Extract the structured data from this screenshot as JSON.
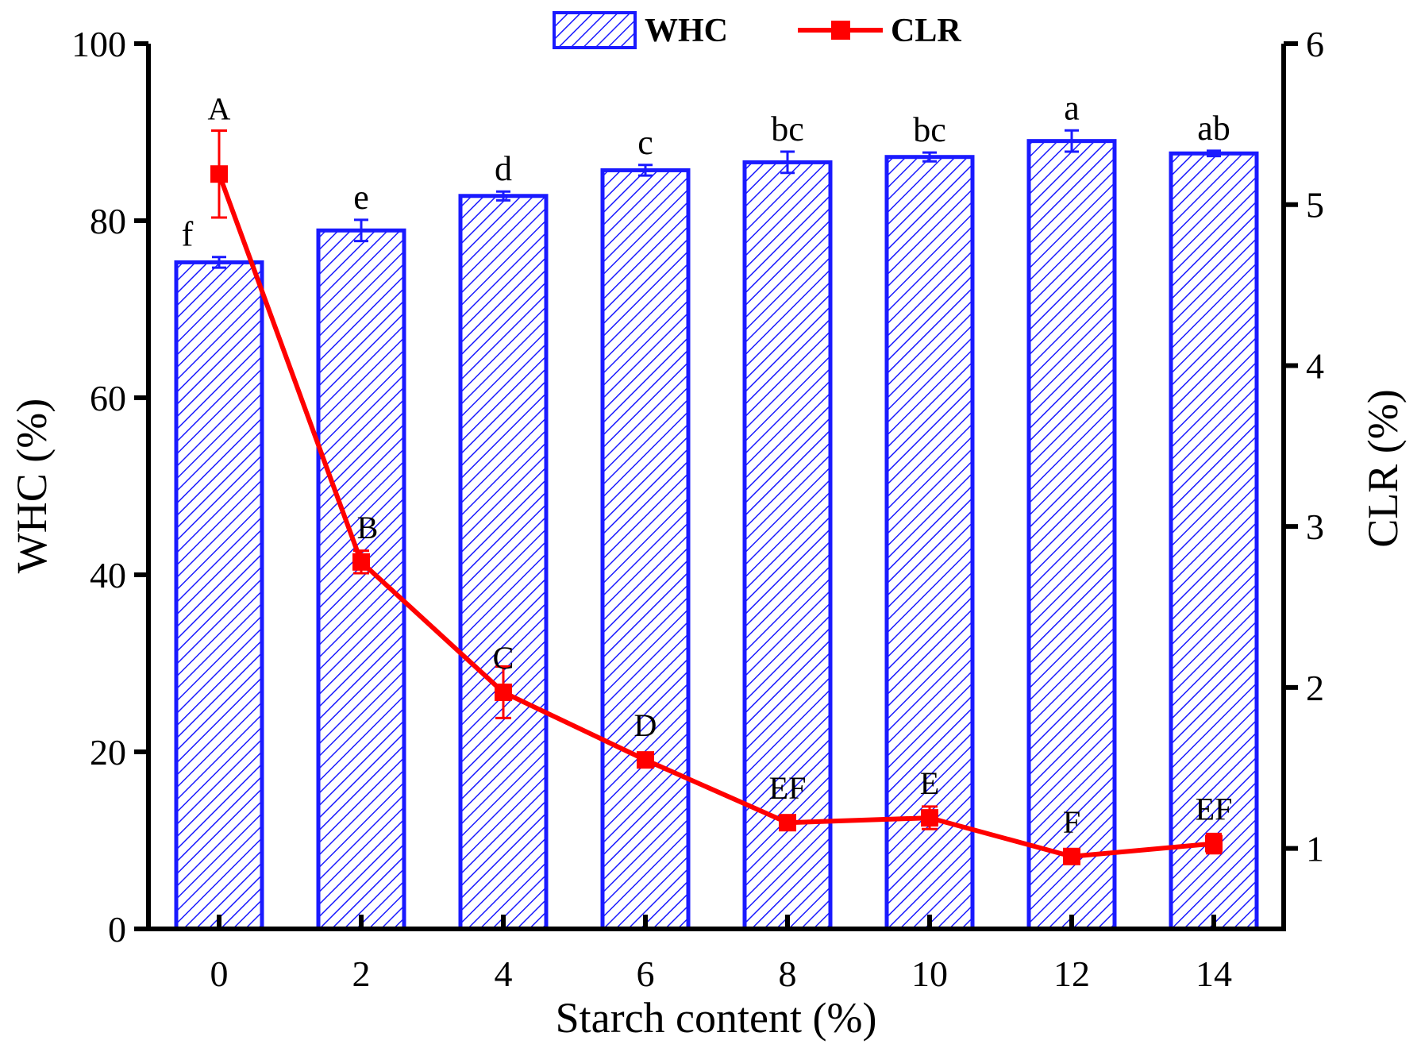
{
  "chart_data": {
    "type": "bar+line",
    "xlabel": "Starch content (%)",
    "ylabel_left": "WHC (%)",
    "ylabel_right": "CLR (%)",
    "categories": [
      "0",
      "2",
      "4",
      "6",
      "8",
      "10",
      "12",
      "14"
    ],
    "ylim_left": [
      0,
      100
    ],
    "yticks_left": [
      0,
      20,
      40,
      60,
      80,
      100
    ],
    "ylim_right": [
      0.5,
      6
    ],
    "yticks_right": [
      1,
      2,
      3,
      4,
      5,
      6
    ],
    "grid": false,
    "legend_placement": "top-center",
    "series": [
      {
        "name": "WHC",
        "kind": "bar",
        "color": "#1a1aff",
        "pattern": "diagonal-hatch",
        "values": [
          75.3,
          78.9,
          82.8,
          85.7,
          86.6,
          87.2,
          89.0,
          87.6
        ],
        "errors": [
          0.6,
          1.2,
          0.5,
          0.6,
          1.2,
          0.5,
          1.2,
          0.3
        ],
        "labels": [
          "f",
          "e",
          "d",
          "c",
          "bc",
          "bc",
          "a",
          "ab"
        ]
      },
      {
        "name": "CLR",
        "kind": "line",
        "axis": "right",
        "color": "#ff0000",
        "marker": "square",
        "values": [
          5.19,
          2.78,
          1.97,
          1.55,
          1.16,
          1.19,
          0.95,
          1.03
        ],
        "errors": [
          0.27,
          0.07,
          0.16,
          0.03,
          0.03,
          0.07,
          0.03,
          0.06
        ],
        "labels": [
          "A",
          "B",
          "C",
          "D",
          "EF",
          "E",
          "F",
          "EF"
        ]
      }
    ]
  }
}
